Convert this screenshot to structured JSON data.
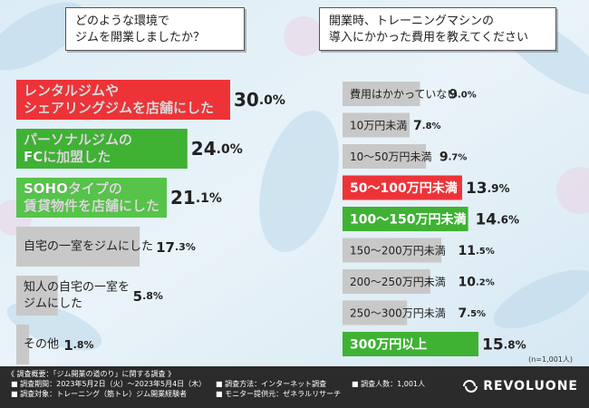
{
  "colors": {
    "accent_red": "#ee3338",
    "accent_green": "#3fb234",
    "accent_light_green": "#55c449",
    "bar_gray": "#c8c8c8",
    "text_dark": "#222222"
  },
  "left": {
    "question_lines": [
      "どのような環境で",
      "ジムを開業しましたか？"
    ]
  },
  "right": {
    "question_lines": [
      "開業時、トレーニングマシンの",
      "導入にかかった費用を教えてください"
    ]
  },
  "chart_data": [
    {
      "type": "bar",
      "orientation": "horizontal",
      "unit": "%",
      "categories": [
        [
          "レンタルジムや",
          "シェアリングジムを店舗にした"
        ],
        [
          "パーソナルジムの",
          "FCに加盟した"
        ],
        [
          "SOHOタイプの",
          "賃貸物件を店舗にした"
        ],
        [
          "自宅の一室をジムにした"
        ],
        [
          "知人の自宅の一室を",
          "ジムにした"
        ],
        [
          "その他"
        ]
      ],
      "values": [
        30.0,
        24.0,
        21.1,
        17.3,
        5.8,
        1.8
      ],
      "value_labels": [
        "30.0",
        "24.0",
        "21.1",
        "17.3",
        "5.8",
        "1.8"
      ],
      "highlight": [
        "red",
        "green",
        "light-green",
        "none",
        "none",
        "none"
      ]
    },
    {
      "type": "bar",
      "orientation": "horizontal",
      "unit": "%",
      "categories": [
        "費用はかかっていない",
        "10万円未満",
        "10〜50万円未満",
        "50〜100万円未満",
        "100〜150万円未満",
        "150〜200万円未満",
        "200〜250万円未満",
        "250〜300万円未満",
        "300万円以上"
      ],
      "values": [
        9.0,
        7.8,
        9.7,
        13.9,
        14.6,
        11.5,
        10.2,
        7.5,
        15.8
      ],
      "value_labels": [
        "9.0",
        "7.8",
        "9.7",
        "13.9",
        "14.6",
        "11.5",
        "10.2",
        "7.5",
        "15.8"
      ],
      "highlight": [
        "none",
        "none",
        "none",
        "red",
        "green",
        "none",
        "none",
        "none",
        "green"
      ]
    }
  ],
  "sample_note": "(n=1,001人)",
  "footer": {
    "title": "《 調査概要：「ジム開業の道のり」に関する調査 》",
    "period": "■ 調査期間：2023年5月2日（火）〜2023年5月4日（木）",
    "target": "■ 調査対象：トレーニング（筋トレ）ジム開業経験者",
    "method": "■ 調査方法：インターネット調査",
    "provider": "■ モニター提供元：ゼネラルリサーチ",
    "count": "■ 調査人数：1,001人",
    "logo": "REVOLUONE"
  }
}
